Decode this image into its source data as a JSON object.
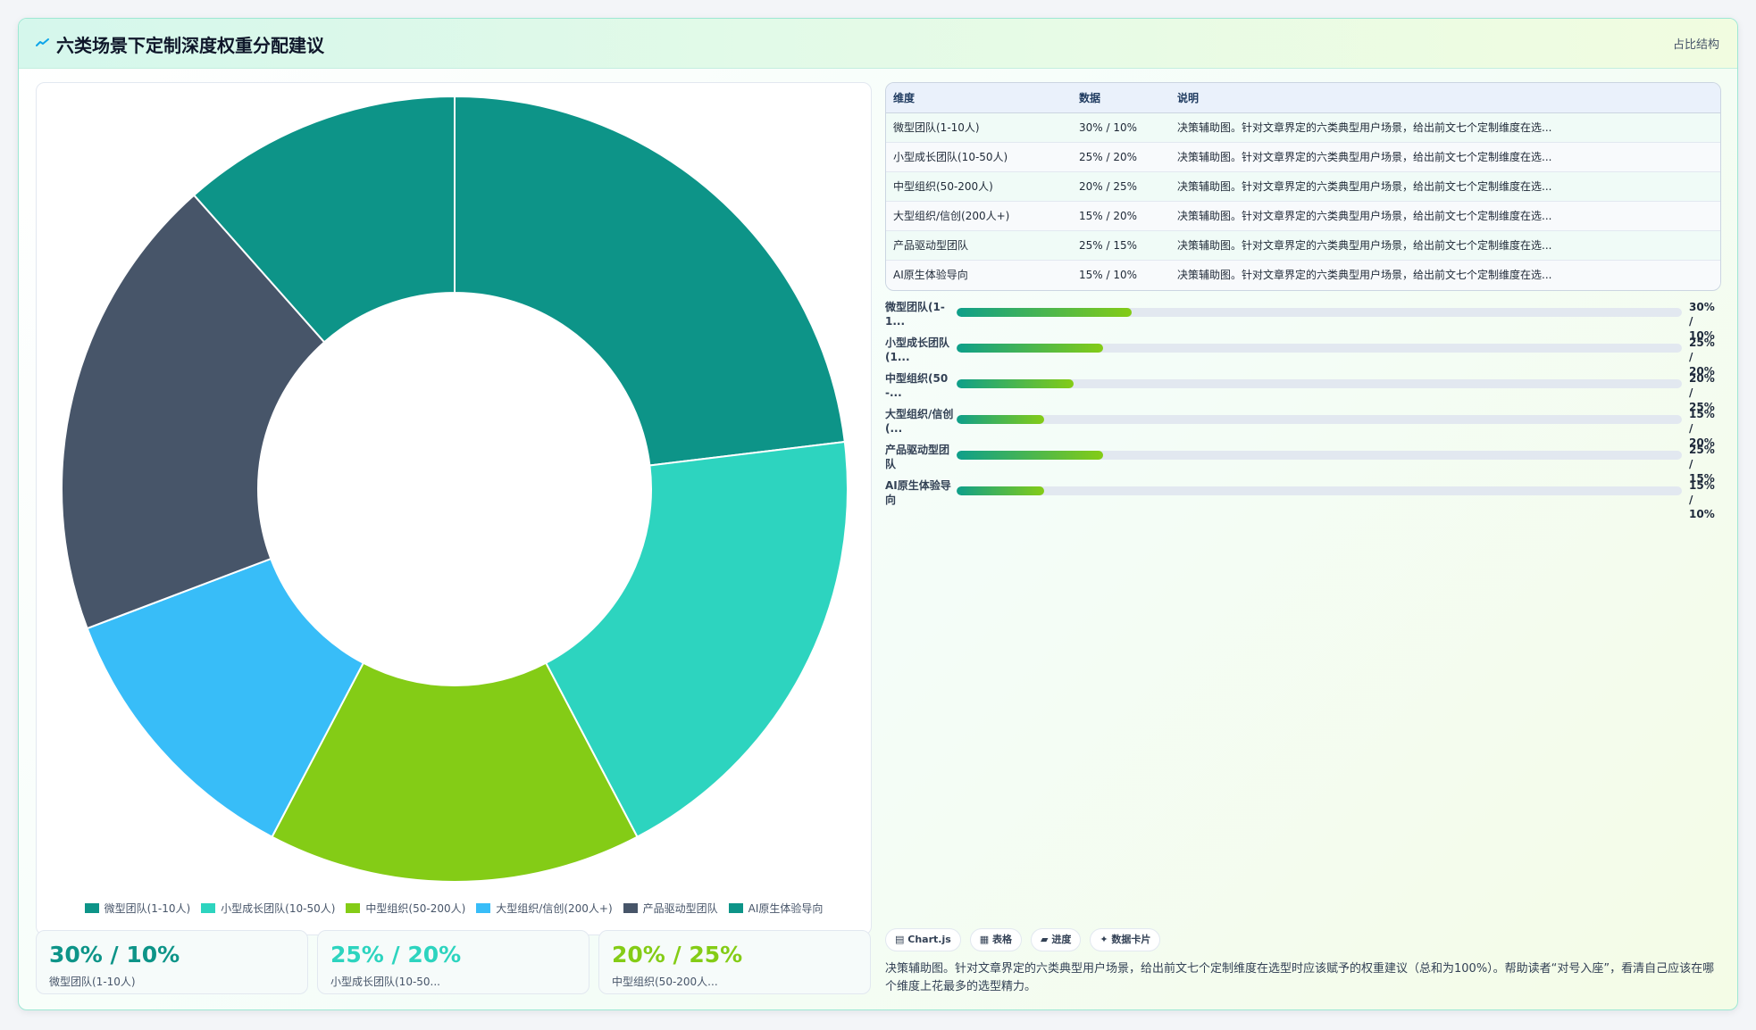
{
  "header": {
    "title": "六类场景下定制深度权重分配建议",
    "tag": "占比结构"
  },
  "chart_data": {
    "type": "pie",
    "title": "",
    "categories": [
      "微型团队(1-10人)",
      "小型成长团队(10-50人)",
      "中型组织(50-200人)",
      "大型组织/信创(200人+)",
      "产品驱动型团队",
      "AI原生体验导向"
    ],
    "values": [
      30,
      25,
      20,
      15,
      25,
      15
    ],
    "colors": [
      "#0d9488",
      "#2dd4bf",
      "#84cc16",
      "#38bdf8",
      "#475569",
      "#0d9488"
    ],
    "donut": true,
    "legend_position": "bottom"
  },
  "kpis": [
    {
      "value": "30% / 10%",
      "label": "微型团队(1-10人)",
      "color": "#0d9488"
    },
    {
      "value": "25% / 20%",
      "label": "小型成长团队(10-50...",
      "color": "#2dd4bf"
    },
    {
      "value": "20% / 25%",
      "label": "中型组织(50-200人...",
      "color": "#84cc16"
    }
  ],
  "table": {
    "headers": [
      "维度",
      "数据",
      "说明"
    ],
    "rows": [
      [
        "微型团队(1-10人)",
        "30% / 10%",
        "决策辅助图。针对文章界定的六类典型用户场景，给出前文七个定制维度在选..."
      ],
      [
        "小型成长团队(10-50人)",
        "25% / 20%",
        "决策辅助图。针对文章界定的六类典型用户场景，给出前文七个定制维度在选..."
      ],
      [
        "中型组织(50-200人)",
        "20% / 25%",
        "决策辅助图。针对文章界定的六类典型用户场景，给出前文七个定制维度在选..."
      ],
      [
        "大型组织/信创(200人+)",
        "15% / 20%",
        "决策辅助图。针对文章界定的六类典型用户场景，给出前文七个定制维度在选..."
      ],
      [
        "产品驱动型团队",
        "25% / 15%",
        "决策辅助图。针对文章界定的六类典型用户场景，给出前文七个定制维度在选..."
      ],
      [
        "AI原生体验导向",
        "15% / 10%",
        "决策辅助图。针对文章界定的六类典型用户场景，给出前文七个定制维度在选..."
      ]
    ]
  },
  "progress": [
    {
      "label": "微型团队(1-1...",
      "value": "30% / 10%",
      "fraction": 0.3
    },
    {
      "label": "小型成长团队(1...",
      "value": "25% / 20%",
      "fraction": 0.25
    },
    {
      "label": "中型组织(50-...",
      "value": "20% / 25%",
      "fraction": 0.2
    },
    {
      "label": "大型组织/信创(...",
      "value": "15% / 20%",
      "fraction": 0.15
    },
    {
      "label": "产品驱动型团队",
      "value": "25% / 15%",
      "fraction": 0.25
    },
    {
      "label": "AI原生体验导向",
      "value": "15% / 10%",
      "fraction": 0.15
    }
  ],
  "chips": [
    {
      "icon": "chart-icon",
      "glyph": "▤",
      "label": "Chart.js"
    },
    {
      "icon": "table-icon",
      "glyph": "▦",
      "label": "表格"
    },
    {
      "icon": "progress-icon",
      "glyph": "▰",
      "label": "进度"
    },
    {
      "icon": "sparkle-icon",
      "glyph": "✦",
      "label": "数据卡片"
    }
  ],
  "description": "决策辅助图。针对文章界定的六类典型用户场景，给出前文七个定制维度在选型时应该赋予的权重建议（总和为100%）。帮助读者“对号入座”，看清自己应该在哪个维度上花最多的选型精力。"
}
